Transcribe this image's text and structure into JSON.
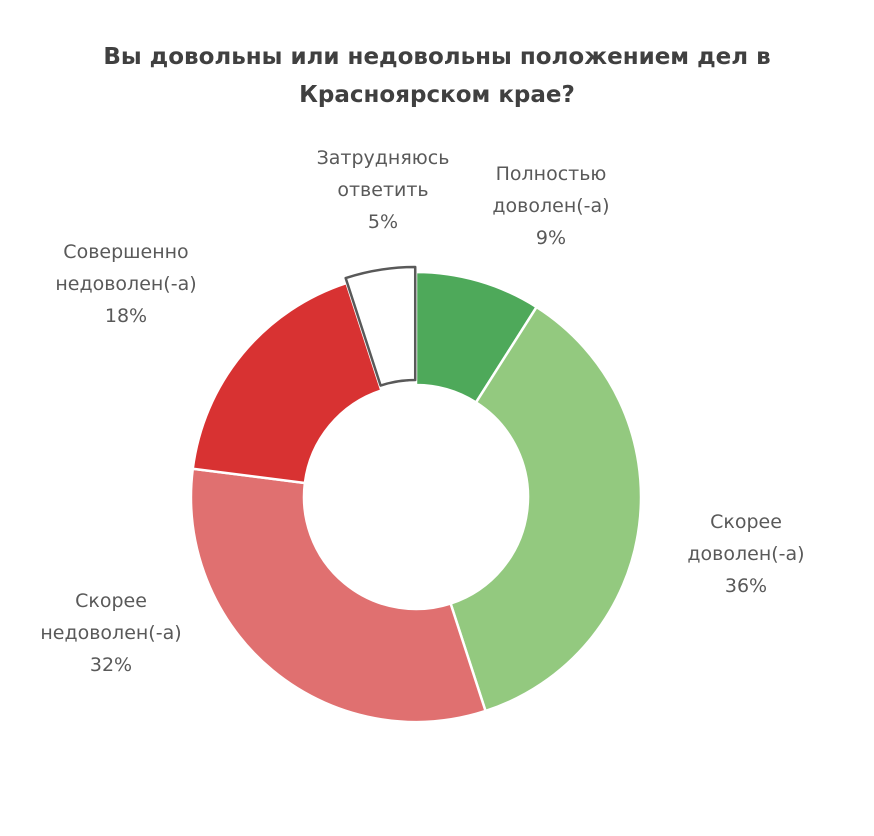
{
  "chart_data": {
    "type": "pie",
    "variant": "donut",
    "title_lines": [
      "Вы довольны или недовольны положением дел в",
      "Красноярском крае?"
    ],
    "series": [
      {
        "name": "Полностью доволен(-а)",
        "label_lines": [
          "Полностью",
          "доволен(-а)"
        ],
        "value": 9,
        "value_label": "9%",
        "color": "#4ea95a"
      },
      {
        "name": "Скорее доволен(-а)",
        "label_lines": [
          "Скорее",
          "доволен(-а)"
        ],
        "value": 36,
        "value_label": "36%",
        "color": "#93c97f"
      },
      {
        "name": "Скорее недоволен(-а)",
        "label_lines": [
          "Скорее",
          "недоволен(-а)"
        ],
        "value": 32,
        "value_label": "32%",
        "color": "#e07070"
      },
      {
        "name": "Совершенно недоволен(-а)",
        "label_lines": [
          "Совершенно",
          "недоволен(-а)"
        ],
        "value": 18,
        "value_label": "18%",
        "color": "#d83232"
      },
      {
        "name": "Затрудняюсь ответить",
        "label_lines": [
          "Затрудняюсь",
          "ответить"
        ],
        "value": 5,
        "value_label": "5%",
        "color": "#ffffff",
        "outline": "#595959",
        "exploded": true
      }
    ],
    "legend": "none",
    "grid": false
  }
}
